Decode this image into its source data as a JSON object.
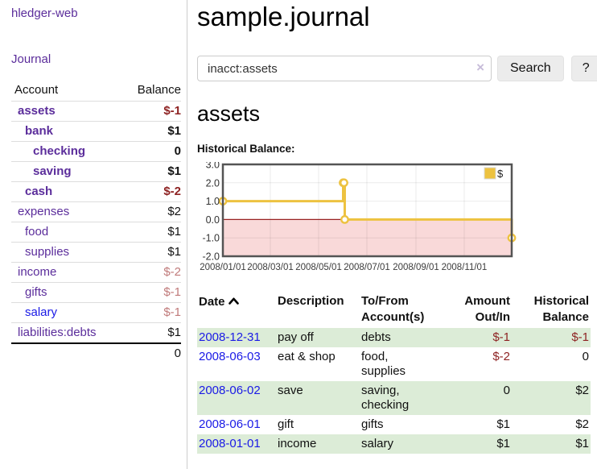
{
  "app": {
    "brand": "hledger-web",
    "nav": {
      "journal": "Journal"
    }
  },
  "colors": {
    "link_purple": "#5b2d9b",
    "link_blue": "#1a1ae6",
    "negative_strong": "#8e2323",
    "negative_soft": "#c07a7a",
    "row_green": "#dcecd7",
    "chart_line": "#edc240",
    "chart_negative_fill": "#f9d9d9",
    "chart_zero_line": "#992222",
    "chart_border": "#545454"
  },
  "sidebar": {
    "headers": {
      "account": "Account",
      "balance": "Balance"
    },
    "accounts": [
      {
        "name": "assets",
        "level": 1,
        "bold": true,
        "name_color": "purple",
        "balance": "$-1",
        "balance_color": "strong"
      },
      {
        "name": "bank",
        "level": 2,
        "bold": true,
        "name_color": "purple",
        "balance": "$1",
        "balance_color": ""
      },
      {
        "name": "checking",
        "level": 3,
        "bold": true,
        "name_color": "purple",
        "balance": "0",
        "balance_color": ""
      },
      {
        "name": "saving",
        "level": 3,
        "bold": true,
        "name_color": "purple",
        "balance": "$1",
        "balance_color": ""
      },
      {
        "name": "cash",
        "level": 2,
        "bold": true,
        "name_color": "purple",
        "balance": "$-2",
        "balance_color": "strong"
      },
      {
        "name": "expenses",
        "level": 1,
        "bold": false,
        "name_color": "purple",
        "balance": "$2",
        "balance_color": ""
      },
      {
        "name": "food",
        "level": 2,
        "bold": false,
        "name_color": "purple",
        "balance": "$1",
        "balance_color": ""
      },
      {
        "name": "supplies",
        "level": 2,
        "bold": false,
        "name_color": "purple",
        "balance": "$1",
        "balance_color": ""
      },
      {
        "name": "income",
        "level": 1,
        "bold": false,
        "name_color": "purple",
        "balance": "$-2",
        "balance_color": "soft"
      },
      {
        "name": "gifts",
        "level": 2,
        "bold": false,
        "name_color": "purple",
        "balance": "$-1",
        "balance_color": "soft"
      },
      {
        "name": "salary",
        "level": 2,
        "bold": false,
        "name_color": "blue",
        "balance": "$-1",
        "balance_color": "soft"
      },
      {
        "name": "liabilities:debts",
        "level": 1,
        "bold": false,
        "name_color": "purple",
        "balance": "$1",
        "balance_color": ""
      }
    ],
    "total": "0"
  },
  "main": {
    "title": "sample.journal",
    "search": {
      "value": "inacct:assets",
      "clear_icon": "×",
      "search_button": "Search",
      "help_button": "?"
    },
    "account_heading": "assets",
    "chart_title": "Historical Balance:"
  },
  "chart_data": {
    "type": "line",
    "step": true,
    "title": "Historical Balance",
    "series": [
      {
        "name": "$",
        "color": "#edc240",
        "points": [
          {
            "date": "2008-01-01",
            "value": 1
          },
          {
            "date": "2008-06-01",
            "value": 2
          },
          {
            "date": "2008-06-02",
            "value": 2
          },
          {
            "date": "2008-06-03",
            "value": 0
          },
          {
            "date": "2008-12-31",
            "value": -1
          }
        ]
      }
    ],
    "ylim": [
      -2,
      3
    ],
    "ytick_labels": [
      "3.0",
      "2.0",
      "1.0",
      "0.0",
      "-1.0",
      "-2.0"
    ],
    "xtick_labels": [
      "2008/01/01",
      "2008/03/01",
      "2008/05/01",
      "2008/07/01",
      "2008/09/01",
      "2008/11/01"
    ],
    "x_range": [
      "2008-01-01",
      "2008-12-31"
    ],
    "legend": {
      "label": "$",
      "position": "top-right"
    },
    "grid": true,
    "negative_region_shaded": true
  },
  "register": {
    "headers": {
      "date": "Date",
      "description": "Description",
      "accounts": "To/From Account(s)",
      "amount": "Amount Out/In",
      "balance": "Historical Balance"
    },
    "rows": [
      {
        "date": "2008-12-31",
        "description": "pay off",
        "accounts": "debts",
        "amount": "$-1",
        "balance": "$-1",
        "amount_negative": true,
        "balance_negative": true,
        "green": true
      },
      {
        "date": "2008-06-03",
        "description": "eat & shop",
        "accounts": "food, supplies",
        "amount": "$-2",
        "balance": "0",
        "amount_negative": true,
        "balance_negative": false,
        "green": false
      },
      {
        "date": "2008-06-02",
        "description": "save",
        "accounts": "saving, checking",
        "amount": "0",
        "balance": "$2",
        "amount_negative": false,
        "balance_negative": false,
        "green": true
      },
      {
        "date": "2008-06-01",
        "description": "gift",
        "accounts": "gifts",
        "amount": "$1",
        "balance": "$2",
        "amount_negative": false,
        "balance_negative": false,
        "green": false
      },
      {
        "date": "2008-01-01",
        "description": "income",
        "accounts": "salary",
        "amount": "$1",
        "balance": "$1",
        "amount_negative": false,
        "balance_negative": false,
        "green": true
      }
    ]
  }
}
